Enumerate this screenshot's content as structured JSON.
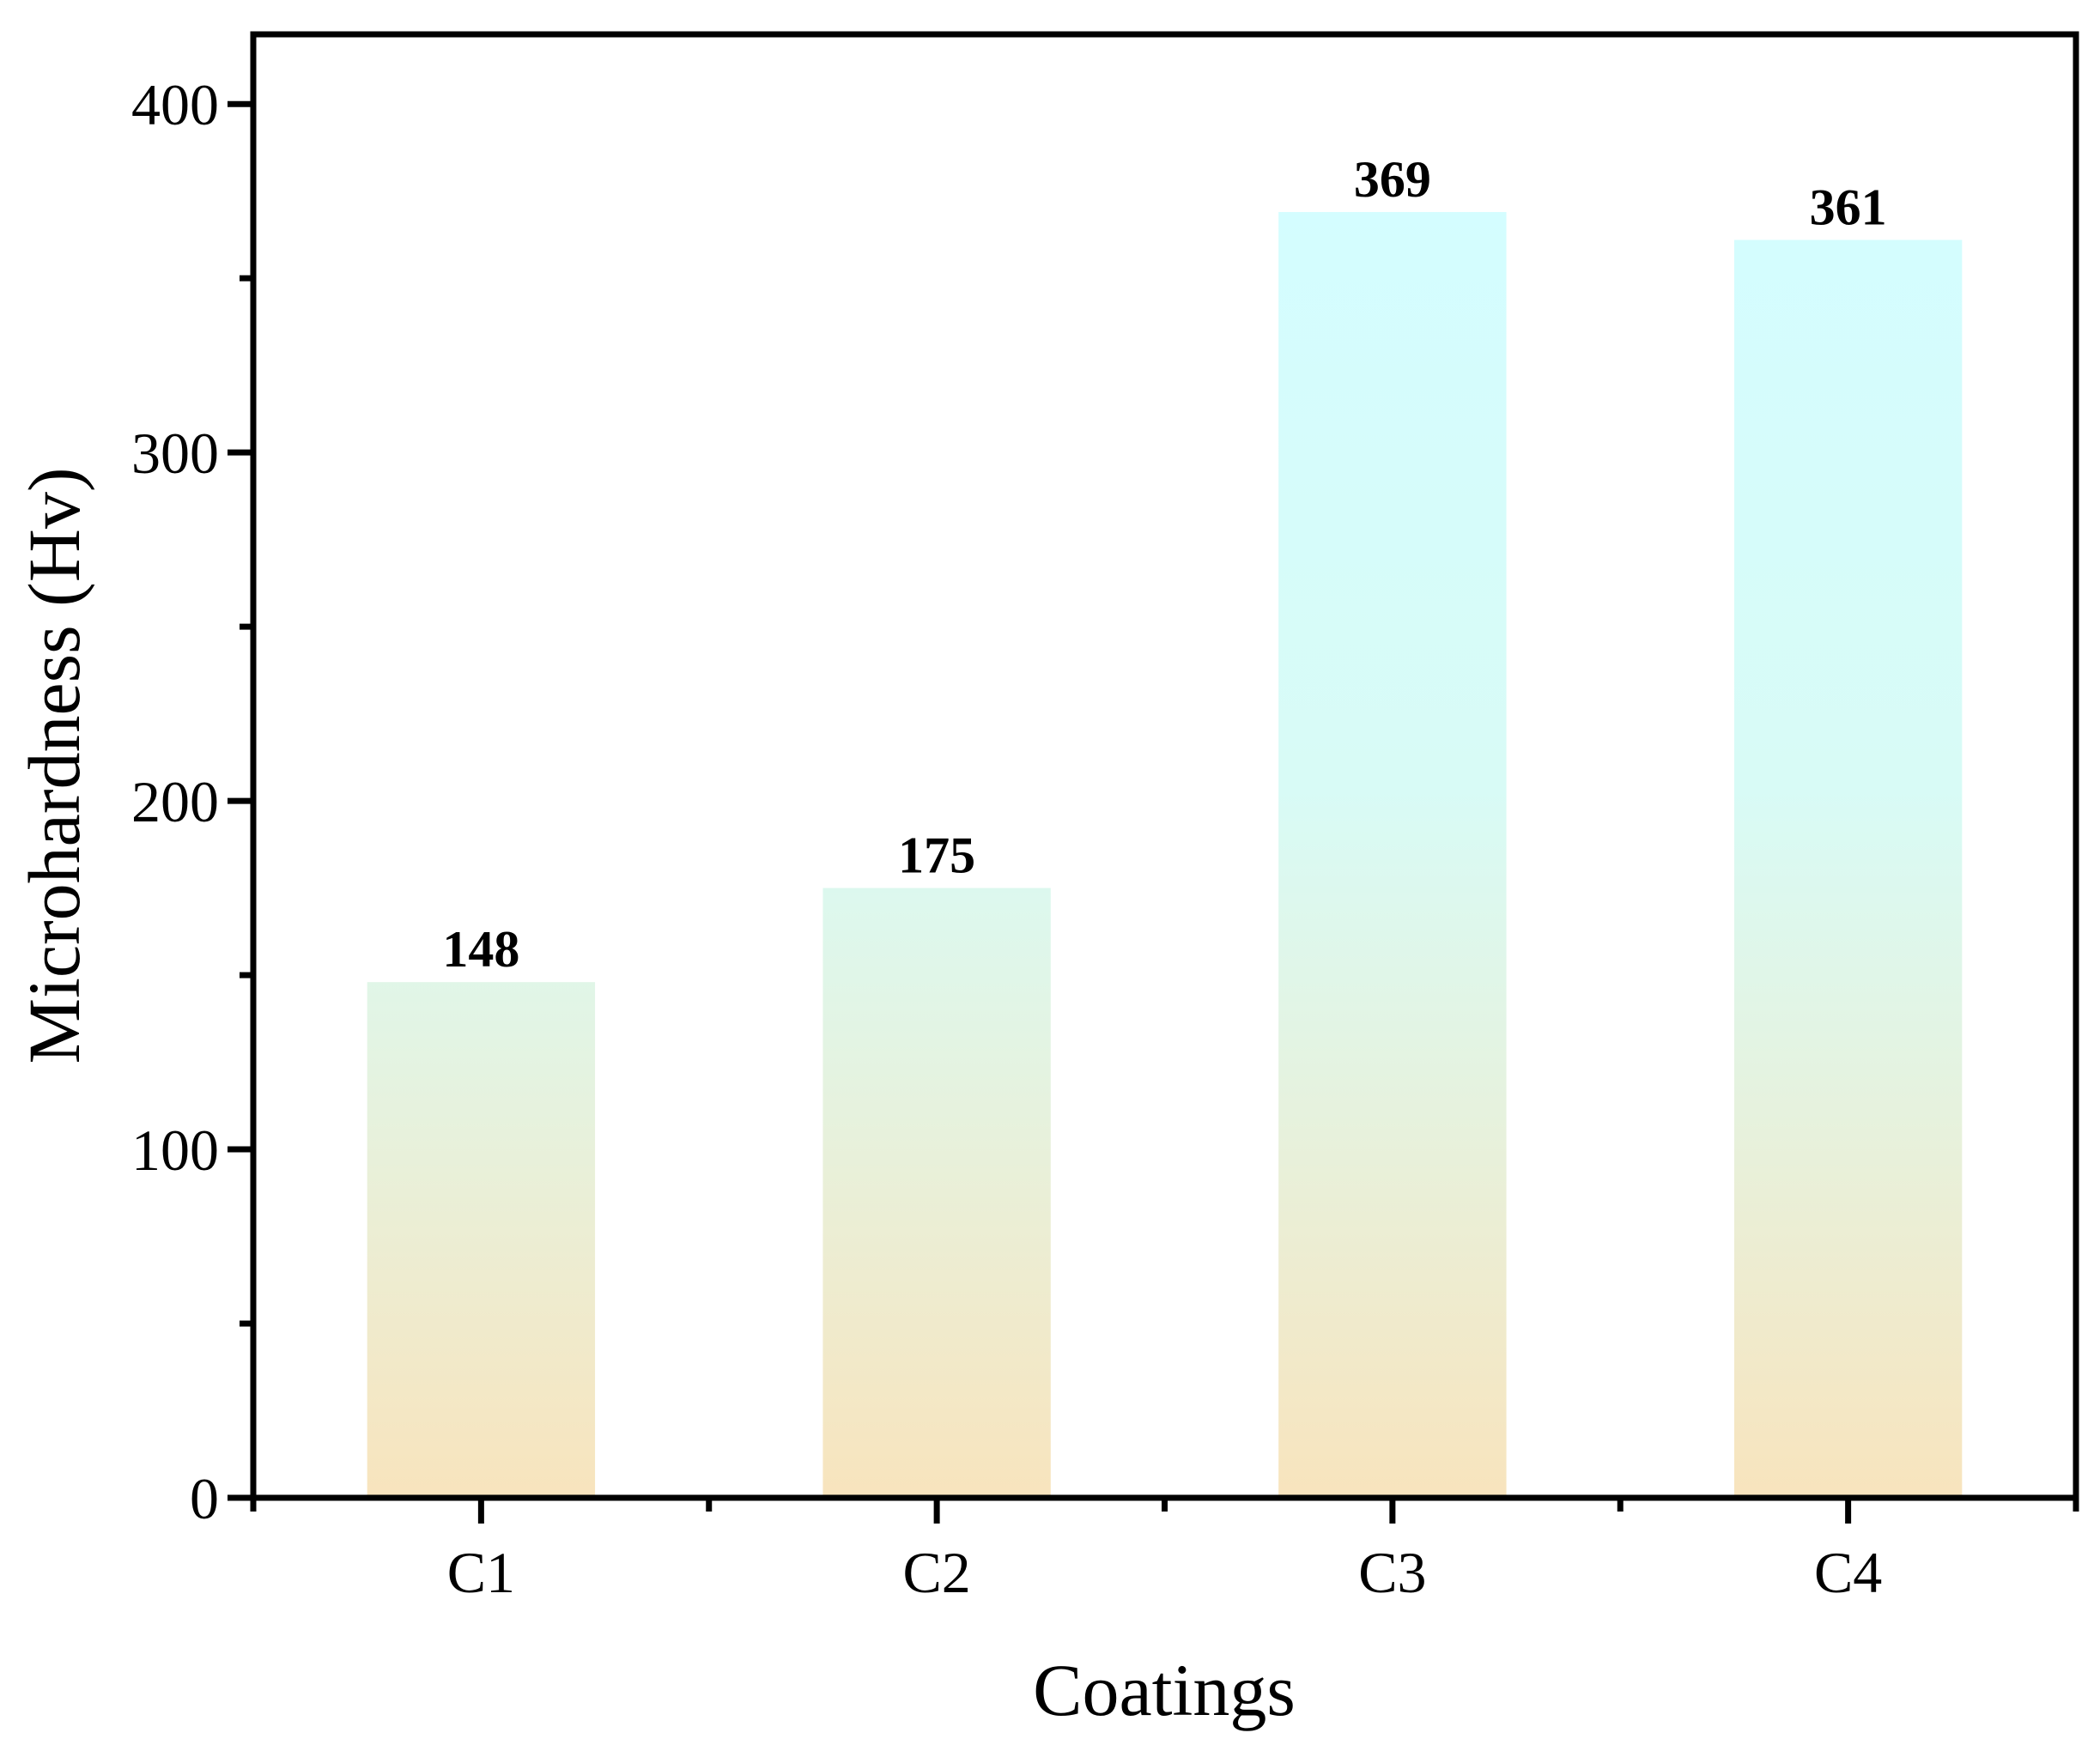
{
  "chart_data": {
    "type": "bar",
    "categories": [
      "C1",
      "C2",
      "C3",
      "C4"
    ],
    "values": [
      148,
      175,
      369,
      361
    ],
    "data_labels": [
      "148",
      "175",
      "369",
      "361"
    ],
    "title": "",
    "xlabel": "Coatings",
    "ylabel": "Microhardness (Hv)",
    "ylim": [
      0,
      420
    ],
    "yticks": [
      0,
      100,
      200,
      300,
      400
    ],
    "ytick_labels": [
      "0",
      "100",
      "200",
      "300",
      "400"
    ],
    "grid": false,
    "legend": "none",
    "colors": {
      "bar_top": "#d4fdff",
      "bar_bottom": "#f8e4bd",
      "axis": "#000000"
    }
  }
}
